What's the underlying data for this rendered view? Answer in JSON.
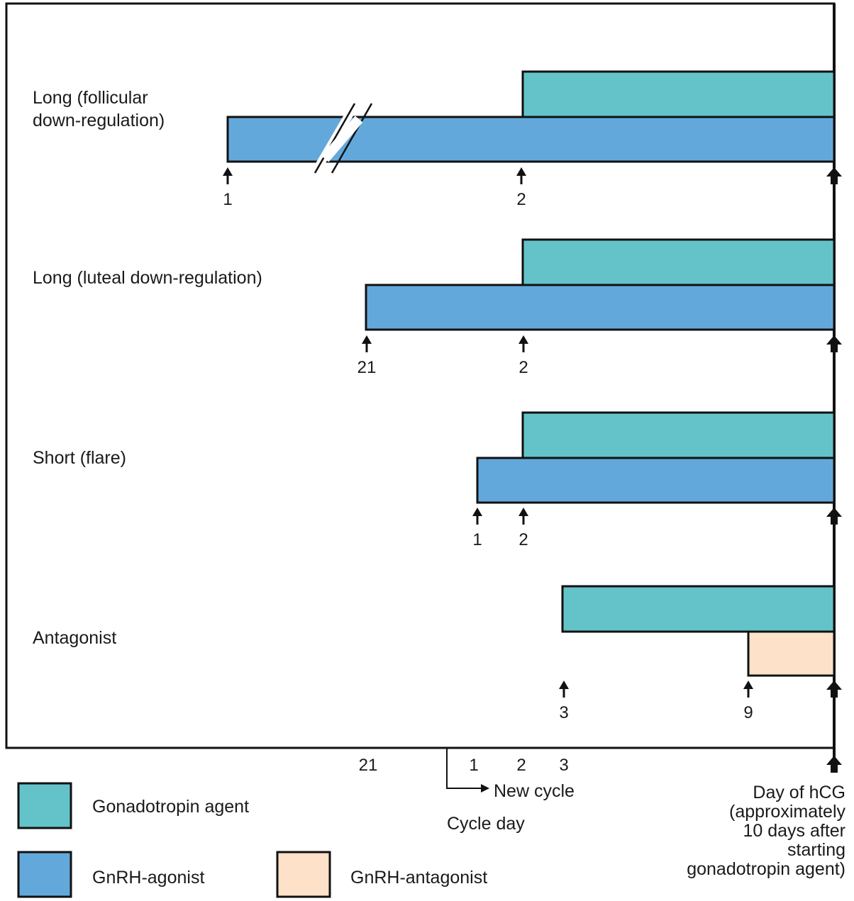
{
  "colors": {
    "gonadotropin": "#64c3c9",
    "agonist": "#63a8db",
    "antagonist": "#fde2c9",
    "line": "#111111"
  },
  "protocols": [
    {
      "name": "Long (follicular",
      "name2": "down-regulation)",
      "start_day": "1",
      "gonadotropin_day": "2"
    },
    {
      "name": "Long (luteal down-regulation)",
      "start_day": "21",
      "gonadotropin_day": "2"
    },
    {
      "name": "Short (flare)",
      "start_day": "1",
      "gonadotropin_day": "2"
    },
    {
      "name": "Antagonist",
      "gonadotropin_day": "3",
      "antagonist_day": "9"
    }
  ],
  "axis": {
    "ticks": [
      "21",
      "1",
      "2",
      "3"
    ],
    "new_cycle": "New cycle",
    "cycle_day": "Cycle day",
    "hcg": [
      "Day of hCG",
      "(approximately",
      "10 days after",
      "starting",
      "gonadotropin agent)"
    ]
  },
  "legend": {
    "gonadotropin": "Gonadotropin agent",
    "agonist": "GnRH-agonist",
    "antagonist": "GnRH-antagonist"
  }
}
